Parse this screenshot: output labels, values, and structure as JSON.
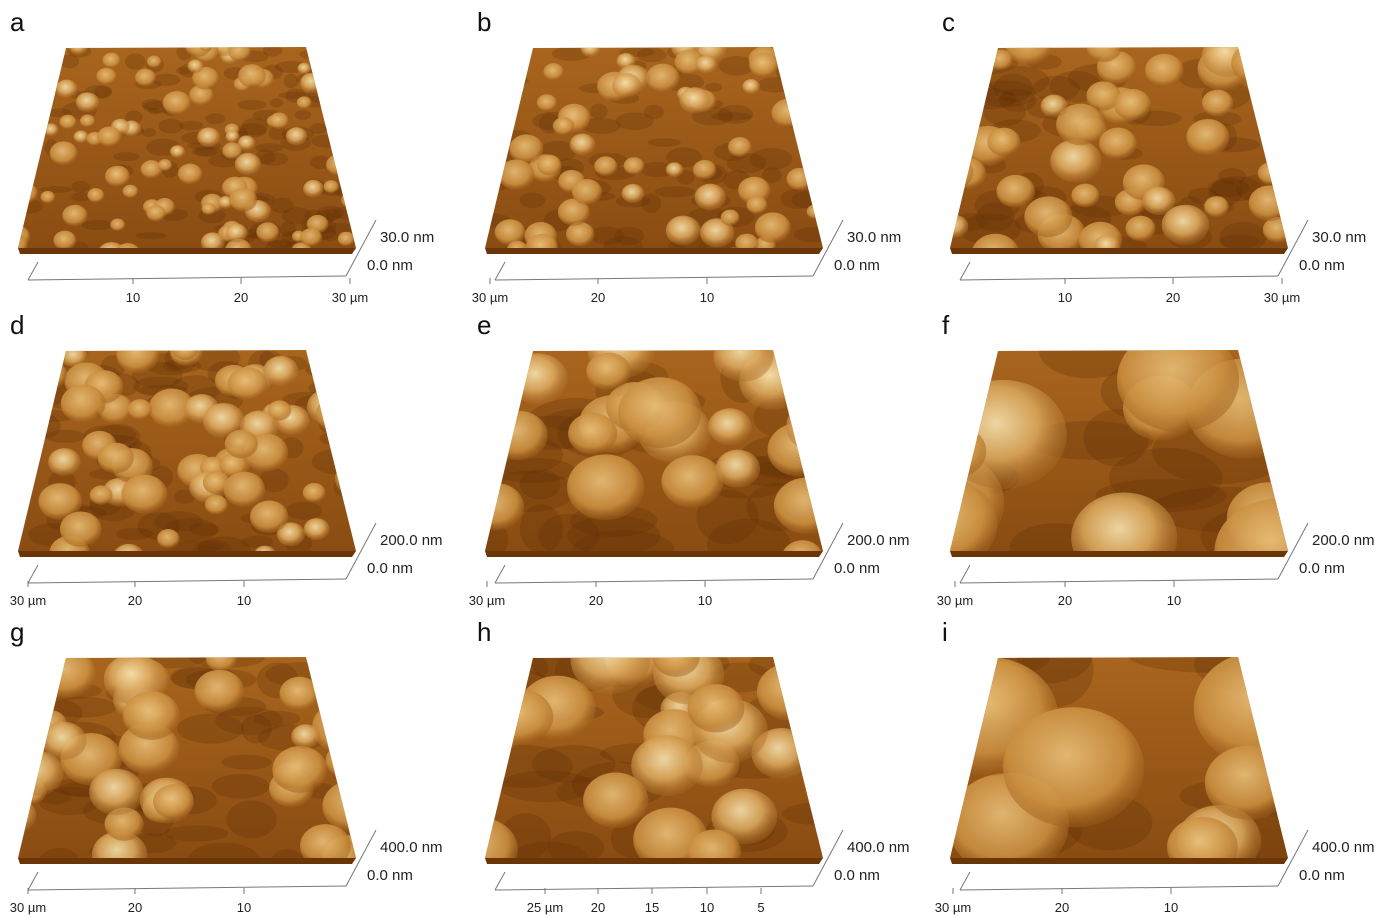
{
  "panels": [
    {
      "label": "a",
      "z_top": "30.0 nm",
      "z_bottom": "0.0 nm",
      "x_ticks": [
        "10",
        "20",
        "30 µm"
      ]
    },
    {
      "label": "b",
      "z_top": "30.0 nm",
      "z_bottom": "0.0 nm",
      "x_ticks": [
        "30 µm",
        "20",
        "10"
      ]
    },
    {
      "label": "c",
      "z_top": "30.0 nm",
      "z_bottom": "0.0 nm",
      "x_ticks": [
        "10",
        "20",
        "30 µm"
      ]
    },
    {
      "label": "d",
      "z_top": "200.0 nm",
      "z_bottom": "0.0 nm",
      "x_ticks": [
        "30 µm",
        "20",
        "10"
      ]
    },
    {
      "label": "e",
      "z_top": "200.0 nm",
      "z_bottom": "0.0 nm",
      "x_ticks": [
        "30 µm",
        "20",
        "10"
      ]
    },
    {
      "label": "f",
      "z_top": "200.0 nm",
      "z_bottom": "0.0 nm",
      "x_ticks": [
        "30 µm",
        "20",
        "10"
      ]
    },
    {
      "label": "g",
      "z_top": "400.0 nm",
      "z_bottom": "0.0 nm",
      "x_ticks": [
        "30 µm",
        "20",
        "10"
      ]
    },
    {
      "label": "h",
      "z_top": "400.0 nm",
      "z_bottom": "0.0 nm",
      "x_ticks": [
        "25 µm",
        "20",
        "15",
        "10",
        "5"
      ]
    },
    {
      "label": "i",
      "z_top": "400.0 nm",
      "z_bottom": "0.0 nm",
      "x_ticks": [
        "30 µm",
        "20",
        "10"
      ]
    }
  ]
}
